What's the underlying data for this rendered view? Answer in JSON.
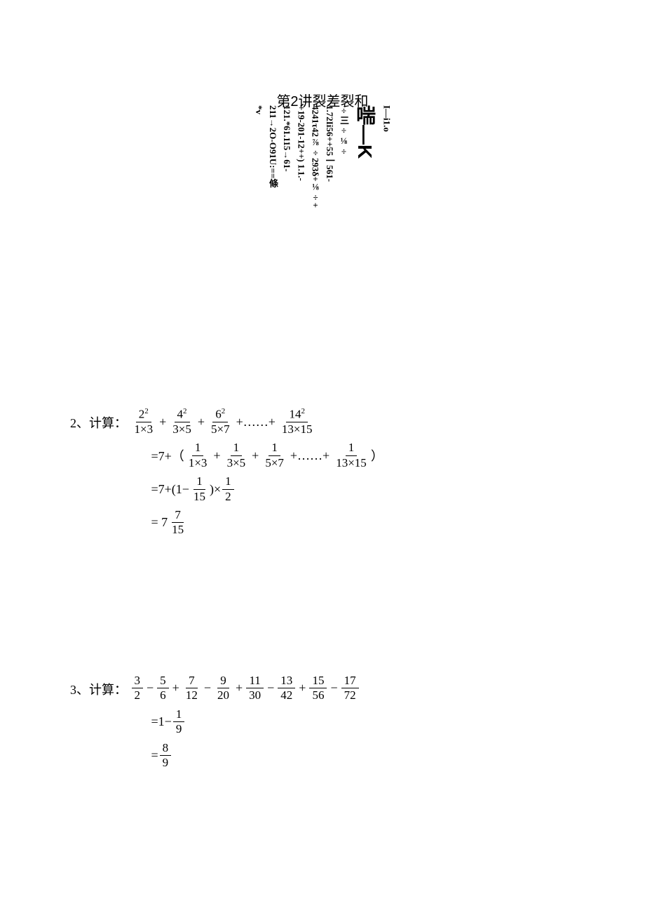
{
  "title": "第2讲裂差裂和",
  "vertical": {
    "line1": "I—i1.o",
    "line2_big": "喘—K",
    "line3": "÷三÷⅛÷",
    "line4": "1.72Ii56++55一561-",
    "line5": "4241τ42⅞÷293δ+⅛÷+",
    "line6": "+19-201-12++) 1.1.-",
    "line7": "121.*61.115→61-",
    "line8": "211→2O-O91U:==條",
    "line9": "*v"
  },
  "problem2": {
    "label": "2、计算：",
    "row1": {
      "f1n": "2",
      "f1d": "1×3",
      "f2n": "4",
      "f2d": "3×5",
      "f3n": "6",
      "f3d": "5×7",
      "f4n": "14",
      "f4d": "13×15",
      "sup": "2",
      "dots": "+……+"
    },
    "row2": {
      "prefix": "=7+（",
      "f1n": "1",
      "f1d": "1×3",
      "f2n": "1",
      "f2d": "3×5",
      "f3n": "1",
      "f3d": "5×7",
      "f4n": "1",
      "f4d": "13×15",
      "dots": "+……+",
      "suffix": "）"
    },
    "row3": {
      "prefix": "=7+(1−",
      "f1n": "1",
      "f1d": "15",
      "mid": ")×",
      "f2n": "1",
      "f2d": "2"
    },
    "row4": {
      "prefix": "= 7",
      "fn": "7",
      "fd": "15"
    }
  },
  "problem3": {
    "label": "3、计算：",
    "row1": {
      "f1n": "3",
      "f1d": "2",
      "f2n": "5",
      "f2d": "6",
      "f3n": "7",
      "f3d": "12",
      "f4n": "9",
      "f4d": "20",
      "f5n": "11",
      "f5d": "30",
      "f6n": "13",
      "f6d": "42",
      "f7n": "15",
      "f7d": "56",
      "f8n": "17",
      "f8d": "72"
    },
    "row2": {
      "prefix": "=1−",
      "fn": "1",
      "fd": "9"
    },
    "row3": {
      "prefix": "=",
      "fn": "8",
      "fd": "9"
    }
  }
}
